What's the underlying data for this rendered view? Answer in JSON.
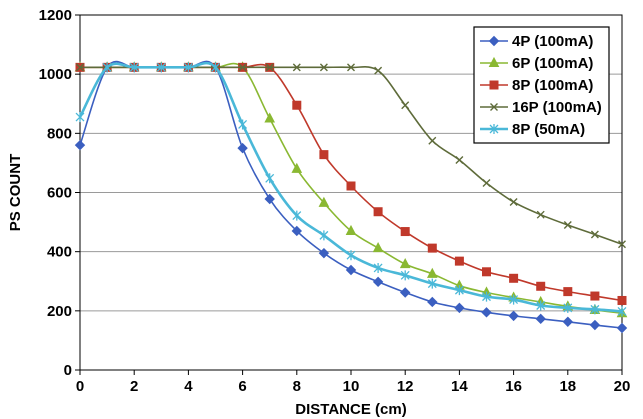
{
  "chart_data": {
    "type": "line",
    "title": "",
    "xlabel": "DISTANCE (cm)",
    "ylabel": "PS COUNT",
    "xlim": [
      0,
      20
    ],
    "ylim": [
      0,
      1200
    ],
    "x_ticks": [
      "0",
      "2",
      "4",
      "6",
      "8",
      "10",
      "12",
      "14",
      "16",
      "18",
      "20"
    ],
    "y_ticks": [
      "0",
      "200",
      "400",
      "600",
      "800",
      "1000",
      "1200"
    ],
    "grid": "horizontal",
    "legend_position": "top-right",
    "x": [
      0,
      1,
      2,
      3,
      4,
      5,
      6,
      7,
      8,
      9,
      10,
      11,
      12,
      13,
      14,
      15,
      16,
      17,
      18,
      19,
      20
    ],
    "series": [
      {
        "name": "4P (100mA)",
        "color": "#3b5fc0",
        "marker": "diamond",
        "values": [
          760,
          1023,
          1023,
          1023,
          1023,
          1023,
          750,
          578,
          470,
          395,
          338,
          298,
          262,
          230,
          210,
          195,
          183,
          173,
          163,
          152,
          142
        ]
      },
      {
        "name": "6P (100mA)",
        "color": "#8ab832",
        "marker": "triangle",
        "values": [
          1023,
          1023,
          1023,
          1023,
          1023,
          1023,
          1023,
          850,
          680,
          565,
          470,
          412,
          358,
          325,
          285,
          262,
          245,
          230,
          215,
          203,
          192
        ]
      },
      {
        "name": "8P (100mA)",
        "color": "#c0392b",
        "marker": "square",
        "values": [
          1023,
          1023,
          1023,
          1023,
          1023,
          1023,
          1023,
          1023,
          895,
          728,
          622,
          535,
          468,
          412,
          368,
          332,
          310,
          283,
          265,
          250,
          235
        ]
      },
      {
        "name": "16P (100mA)",
        "color": "#5e6b3a",
        "marker": "x",
        "values": [
          1023,
          1023,
          1023,
          1023,
          1023,
          1023,
          1023,
          1023,
          1023,
          1023,
          1023,
          1012,
          895,
          775,
          710,
          632,
          568,
          525,
          490,
          458,
          425
        ]
      },
      {
        "name": "8P (50mA)",
        "color": "#4ab8d8",
        "marker": "star",
        "values": [
          855,
          1023,
          1023,
          1023,
          1023,
          1023,
          830,
          648,
          522,
          455,
          388,
          345,
          320,
          292,
          270,
          248,
          238,
          218,
          210,
          205,
          198
        ]
      }
    ]
  }
}
